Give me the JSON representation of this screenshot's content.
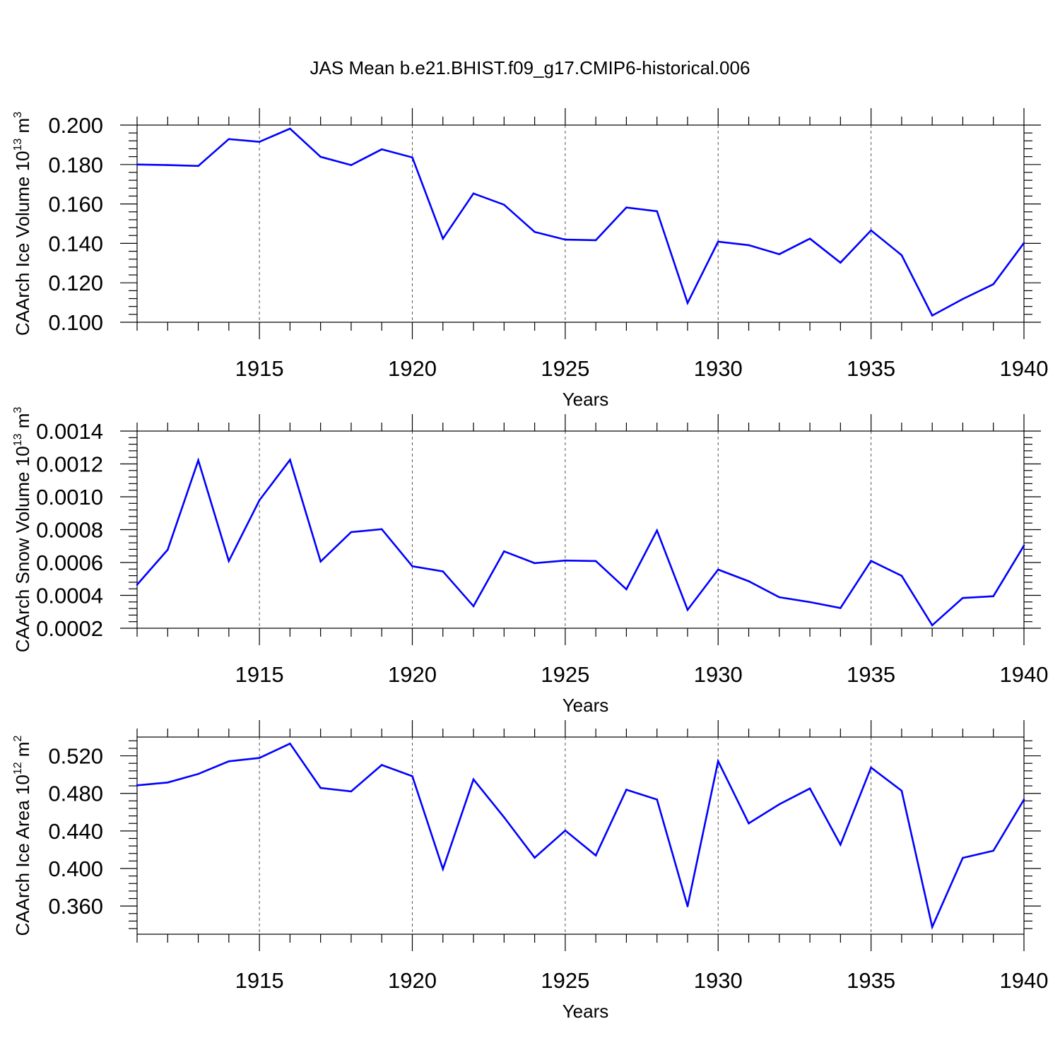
{
  "title": "JAS Mean b.e21.BHIST.f09_g17.CMIP6-historical.006",
  "colors": {
    "line": "#0000ff",
    "axis": "#000000",
    "grid": "#555555"
  },
  "chart_data": [
    {
      "type": "line",
      "ylabel": {
        "text": "CAArch Ice Volume 10",
        "sup1": "13",
        "mid": " m",
        "sup2": "3"
      },
      "xlabel": "Years",
      "xlim": [
        1911,
        1940
      ],
      "ylim": [
        0.1,
        0.2
      ],
      "yticks": [
        0.1,
        0.12,
        0.14,
        0.16,
        0.18,
        0.2
      ],
      "ytick_labels": [
        "0.100",
        "0.120",
        "0.140",
        "0.160",
        "0.180",
        "0.200"
      ],
      "xticks": [
        1915,
        1920,
        1925,
        1930,
        1935,
        1940
      ],
      "xtick_labels": [
        "1915",
        "1920",
        "1925",
        "1930",
        "1935",
        "1940"
      ],
      "grid": "vertical dashed at major x ticks",
      "series": [
        {
          "name": "Ice Volume",
          "x": [
            1911,
            1912,
            1913,
            1914,
            1915,
            1916,
            1917,
            1918,
            1919,
            1920,
            1921,
            1922,
            1923,
            1924,
            1925,
            1926,
            1927,
            1928,
            1929,
            1930,
            1931,
            1932,
            1933,
            1934,
            1935,
            1936,
            1937,
            1938,
            1939,
            1940
          ],
          "values": [
            0.18,
            0.1797,
            0.1793,
            0.1929,
            0.1915,
            0.1982,
            0.1839,
            0.1797,
            0.1877,
            0.1836,
            0.1424,
            0.1653,
            0.1596,
            0.1458,
            0.1419,
            0.1416,
            0.1582,
            0.1563,
            0.1098,
            0.1409,
            0.1391,
            0.1345,
            0.1424,
            0.1302,
            0.1466,
            0.134,
            0.1034,
            0.1118,
            0.1193,
            0.1402
          ]
        }
      ]
    },
    {
      "type": "line",
      "ylabel": {
        "text": "CAArch Snow Volume 10",
        "sup1": "13",
        "mid": " m",
        "sup2": "3"
      },
      "xlabel": "Years",
      "xlim": [
        1911,
        1940
      ],
      "ylim": [
        0.0002,
        0.0014
      ],
      "yticks": [
        0.0002,
        0.0004,
        0.0006,
        0.0008,
        0.001,
        0.0012,
        0.0014
      ],
      "ytick_labels": [
        "0.0002",
        "0.0004",
        "0.0006",
        "0.0008",
        "0.0010",
        "0.0012",
        "0.0014"
      ],
      "xticks": [
        1915,
        1920,
        1925,
        1930,
        1935,
        1940
      ],
      "xtick_labels": [
        "1915",
        "1920",
        "1925",
        "1930",
        "1935",
        "1940"
      ],
      "grid": "vertical dashed at major x ticks",
      "series": [
        {
          "name": "Snow Volume",
          "x": [
            1911,
            1912,
            1913,
            1914,
            1915,
            1916,
            1917,
            1918,
            1919,
            1920,
            1921,
            1922,
            1923,
            1924,
            1925,
            1926,
            1927,
            1928,
            1929,
            1930,
            1931,
            1932,
            1933,
            1934,
            1935,
            1936,
            1937,
            1938,
            1939,
            1940
          ],
          "values": [
            0.000465,
            0.000678,
            0.001222,
            0.000609,
            0.000979,
            0.001225,
            0.000606,
            0.000785,
            0.000803,
            0.000577,
            0.000546,
            0.000334,
            0.000668,
            0.000596,
            0.000612,
            0.000609,
            0.000437,
            0.000795,
            0.000312,
            0.000557,
            0.000486,
            0.000389,
            0.000359,
            0.000323,
            0.00061,
            0.000519,
            0.000218,
            0.000384,
            0.000395,
            0.000703
          ]
        }
      ]
    },
    {
      "type": "line",
      "ylabel": {
        "text": "CAArch Ice Area 10",
        "sup1": "12",
        "mid": " m",
        "sup2": "2"
      },
      "xlabel": "Years",
      "xlim": [
        1911,
        1940
      ],
      "ylim": [
        0.33,
        0.54
      ],
      "yticks": [
        0.36,
        0.4,
        0.44,
        0.48,
        0.52
      ],
      "ytick_labels": [
        "0.360",
        "0.400",
        "0.440",
        "0.480",
        "0.520"
      ],
      "xticks": [
        1915,
        1920,
        1925,
        1930,
        1935,
        1940
      ],
      "xtick_labels": [
        "1915",
        "1920",
        "1925",
        "1930",
        "1935",
        "1940"
      ],
      "grid": "vertical dashed at major x ticks",
      "series": [
        {
          "name": "Ice Area",
          "x": [
            1911,
            1912,
            1913,
            1914,
            1915,
            1916,
            1917,
            1918,
            1919,
            1920,
            1921,
            1922,
            1923,
            1924,
            1925,
            1926,
            1927,
            1928,
            1929,
            1930,
            1931,
            1932,
            1933,
            1934,
            1935,
            1936,
            1937,
            1938,
            1939,
            1940
          ],
          "values": [
            0.4886,
            0.4916,
            0.5007,
            0.5142,
            0.5177,
            0.533,
            0.4858,
            0.4821,
            0.5103,
            0.4983,
            0.3994,
            0.4949,
            0.4546,
            0.4115,
            0.4404,
            0.4139,
            0.4839,
            0.4735,
            0.3597,
            0.5143,
            0.4481,
            0.4684,
            0.4852,
            0.4254,
            0.5075,
            0.4828,
            0.3377,
            0.4113,
            0.4189,
            0.4734
          ]
        }
      ]
    }
  ]
}
